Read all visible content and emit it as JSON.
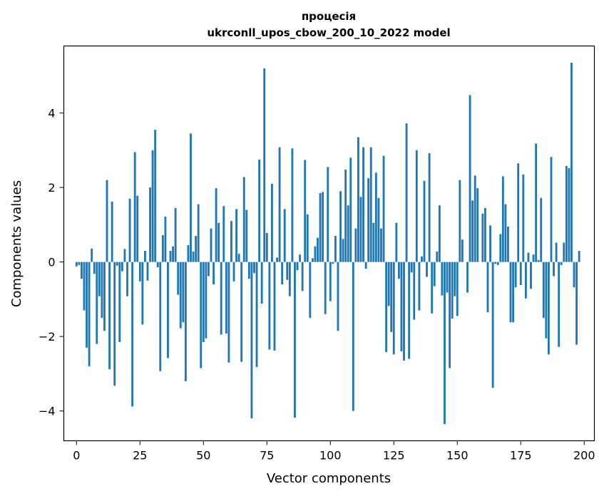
{
  "chart_data": {
    "type": "bar",
    "title_line1": "процесія",
    "title_line2": "ukrconll_upos_cbow_200_10_2022 model",
    "xlabel": "Vector components",
    "ylabel": "Components values",
    "xlim": [
      -5,
      204
    ],
    "ylim": [
      -4.8,
      5.8
    ],
    "xticks": [
      0,
      25,
      50,
      75,
      100,
      125,
      150,
      175,
      200
    ],
    "yticks": [
      -4,
      -2,
      0,
      2,
      4
    ],
    "ytick_labels": [
      "−4",
      "−2",
      "0",
      "2",
      "4"
    ],
    "bar_color": "#1f77b4",
    "grid": false,
    "values": [
      -0.12,
      -0.08,
      -0.45,
      -1.3,
      -2.3,
      -2.8,
      0.36,
      -0.32,
      -2.2,
      -0.92,
      -1.5,
      -1.85,
      2.2,
      -2.88,
      1.62,
      -3.32,
      -0.1,
      -2.15,
      -0.25,
      0.35,
      -0.92,
      1.7,
      -3.88,
      2.95,
      1.78,
      -0.52,
      -1.68,
      0.3,
      -0.5,
      2.0,
      3.0,
      3.55,
      -0.14,
      -2.93,
      0.72,
      1.22,
      -2.58,
      0.3,
      0.42,
      1.45,
      -0.88,
      -1.78,
      -1.62,
      -3.2,
      0.45,
      3.45,
      0.28,
      0.7,
      1.55,
      -2.85,
      -2.15,
      -2.05,
      -0.38,
      0.9,
      -0.6,
      1.98,
      1.05,
      -1.95,
      1.5,
      -1.92,
      -2.7,
      1.1,
      -0.52,
      1.42,
      0.22,
      -2.68,
      2.28,
      1.4,
      -0.45,
      -4.2,
      -0.3,
      -2.82,
      2.75,
      -1.12,
      5.2,
      0.78,
      -2.35,
      2.1,
      -2.38,
      0.12,
      3.08,
      -0.6,
      1.42,
      -0.48,
      -0.92,
      3.05,
      -4.18,
      -0.22,
      0.2,
      -0.78,
      2.74,
      1.28,
      -1.5,
      0.1,
      0.42,
      0.65,
      1.85,
      1.88,
      -1.4,
      2.55,
      -1.05,
      -0.05,
      0.7,
      -1.85,
      1.9,
      0.62,
      2.48,
      1.52,
      2.8,
      -4.0,
      0.9,
      3.35,
      1.75,
      3.08,
      -0.18,
      2.25,
      3.08,
      1.05,
      2.4,
      1.72,
      0.9,
      2.85,
      -2.42,
      -1.18,
      -1.88,
      -2.48,
      1.05,
      -0.45,
      -2.4,
      -2.65,
      3.72,
      -2.6,
      -0.28,
      -1.55,
      3.0,
      -1.3,
      0.15,
      2.18,
      -0.4,
      2.92,
      -1.38,
      -0.65,
      0.28,
      1.52,
      -0.9,
      -4.35,
      -0.82,
      -2.85,
      -1.52,
      -0.92,
      -1.45,
      2.2,
      0.6,
      0.0,
      -0.82,
      4.48,
      1.65,
      2.32,
      1.98,
      0.0,
      1.3,
      1.45,
      -1.35,
      0.98,
      -3.38,
      -0.05,
      -0.08,
      0.75,
      2.3,
      1.55,
      0.95,
      -1.62,
      -1.62,
      -0.68,
      2.65,
      -0.62,
      2.35,
      -0.98,
      0.25,
      -0.72,
      0.2,
      3.18,
      0.05,
      1.72,
      -1.5,
      -2.05,
      -2.48,
      2.82,
      -0.38,
      0.52,
      -2.28,
      -0.08,
      0.52,
      2.58,
      2.52,
      5.35,
      -0.68,
      -2.22,
      0.3
    ]
  }
}
